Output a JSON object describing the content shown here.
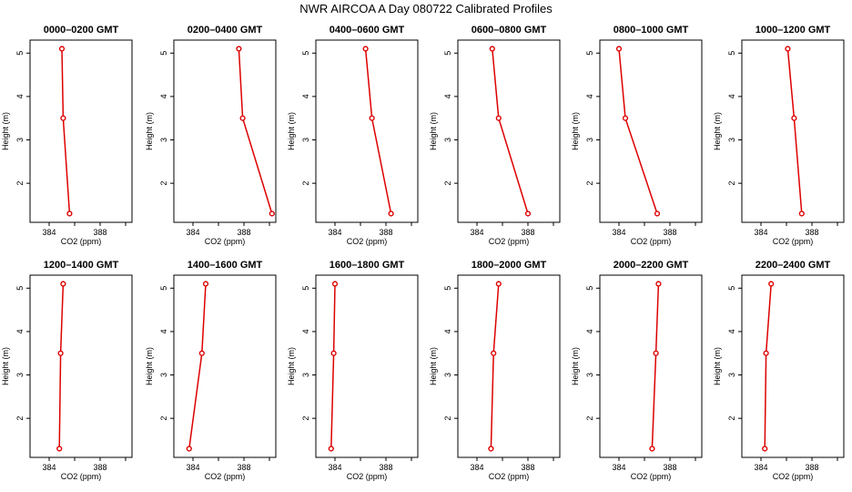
{
  "title": "NWR AIRCOA A  Day 080722  Calibrated Profiles",
  "series_color": "#dd0000",
  "chart_data": [
    {
      "type": "line",
      "title": "0000–0200 GMT",
      "xlabel": "CO2 (ppm)",
      "ylabel": "Height (m)",
      "xlim": [
        382.5,
        390.5
      ],
      "ylim": [
        1.1,
        5.3
      ],
      "xticks": [
        "384",
        "388"
      ],
      "yticks": [
        "2",
        "3",
        "4",
        "5"
      ],
      "grid": false,
      "x": [
        385.0,
        385.1,
        385.6
      ],
      "y": [
        5.1,
        3.5,
        1.3
      ]
    },
    {
      "type": "line",
      "title": "0200–0400 GMT",
      "xlabel": "CO2 (ppm)",
      "ylabel": "Height (m)",
      "xlim": [
        382.5,
        390.5
      ],
      "ylim": [
        1.1,
        5.3
      ],
      "xticks": [
        "384",
        "388"
      ],
      "yticks": [
        "2",
        "3",
        "4",
        "5"
      ],
      "grid": false,
      "x": [
        387.6,
        387.9,
        390.2
      ],
      "y": [
        5.1,
        3.5,
        1.3
      ]
    },
    {
      "type": "line",
      "title": "0400–0600 GMT",
      "xlabel": "CO2 (ppm)",
      "ylabel": "Height (m)",
      "xlim": [
        382.5,
        390.5
      ],
      "ylim": [
        1.1,
        5.3
      ],
      "xticks": [
        "384",
        "388"
      ],
      "yticks": [
        "2",
        "3",
        "4",
        "5"
      ],
      "grid": false,
      "x": [
        386.4,
        386.9,
        388.4
      ],
      "y": [
        5.1,
        3.5,
        1.3
      ]
    },
    {
      "type": "line",
      "title": "0600–0800 GMT",
      "xlabel": "CO2 (ppm)",
      "ylabel": "Height (m)",
      "xlim": [
        382.5,
        390.5
      ],
      "ylim": [
        1.1,
        5.3
      ],
      "xticks": [
        "384",
        "388"
      ],
      "yticks": [
        "2",
        "3",
        "4",
        "5"
      ],
      "grid": false,
      "x": [
        385.2,
        385.7,
        388.0
      ],
      "y": [
        5.1,
        3.5,
        1.3
      ]
    },
    {
      "type": "line",
      "title": "0800–1000 GMT",
      "xlabel": "CO2 (ppm)",
      "ylabel": "Height (m)",
      "xlim": [
        382.5,
        390.5
      ],
      "ylim": [
        1.1,
        5.3
      ],
      "xticks": [
        "384",
        "388"
      ],
      "yticks": [
        "2",
        "3",
        "4",
        "5"
      ],
      "grid": false,
      "x": [
        384.0,
        384.5,
        387.0
      ],
      "y": [
        5.1,
        3.5,
        1.3
      ]
    },
    {
      "type": "line",
      "title": "1000–1200 GMT",
      "xlabel": "CO2 (ppm)",
      "ylabel": "Height (m)",
      "xlim": [
        382.5,
        390.5
      ],
      "ylim": [
        1.1,
        5.3
      ],
      "xticks": [
        "384",
        "388"
      ],
      "yticks": [
        "2",
        "3",
        "4",
        "5"
      ],
      "grid": false,
      "x": [
        386.1,
        386.6,
        387.2
      ],
      "y": [
        5.1,
        3.5,
        1.3
      ]
    },
    {
      "type": "line",
      "title": "1200–1400 GMT",
      "xlabel": "CO2 (ppm)",
      "ylabel": "Height (m)",
      "xlim": [
        382.5,
        390.5
      ],
      "ylim": [
        1.1,
        5.3
      ],
      "xticks": [
        "384",
        "388"
      ],
      "yticks": [
        "2",
        "3",
        "4",
        "5"
      ],
      "grid": false,
      "x": [
        385.1,
        384.9,
        384.8
      ],
      "y": [
        5.1,
        3.5,
        1.3
      ]
    },
    {
      "type": "line",
      "title": "1400–1600 GMT",
      "xlabel": "CO2 (ppm)",
      "ylabel": "Height (m)",
      "xlim": [
        382.5,
        390.5
      ],
      "ylim": [
        1.1,
        5.3
      ],
      "xticks": [
        "384",
        "388"
      ],
      "yticks": [
        "2",
        "3",
        "4",
        "5"
      ],
      "grid": false,
      "x": [
        385.0,
        384.7,
        383.7
      ],
      "y": [
        5.1,
        3.5,
        1.3
      ]
    },
    {
      "type": "line",
      "title": "1600–1800 GMT",
      "xlabel": "CO2 (ppm)",
      "ylabel": "Height (m)",
      "xlim": [
        382.5,
        390.5
      ],
      "ylim": [
        1.1,
        5.3
      ],
      "xticks": [
        "384",
        "388"
      ],
      "yticks": [
        "2",
        "3",
        "4",
        "5"
      ],
      "grid": false,
      "x": [
        384.0,
        383.9,
        383.7
      ],
      "y": [
        5.1,
        3.5,
        1.3
      ]
    },
    {
      "type": "line",
      "title": "1800–2000 GMT",
      "xlabel": "CO2 (ppm)",
      "ylabel": "Height (m)",
      "xlim": [
        382.5,
        390.5
      ],
      "ylim": [
        1.1,
        5.3
      ],
      "xticks": [
        "384",
        "388"
      ],
      "yticks": [
        "2",
        "3",
        "4",
        "5"
      ],
      "grid": false,
      "x": [
        385.7,
        385.3,
        385.1
      ],
      "y": [
        5.1,
        3.5,
        1.3
      ]
    },
    {
      "type": "line",
      "title": "2000–2200 GMT",
      "xlabel": "CO2 (ppm)",
      "ylabel": "Height (m)",
      "xlim": [
        382.5,
        390.5
      ],
      "ylim": [
        1.1,
        5.3
      ],
      "xticks": [
        "384",
        "388"
      ],
      "yticks": [
        "2",
        "3",
        "4",
        "5"
      ],
      "grid": false,
      "x": [
        387.1,
        386.9,
        386.6
      ],
      "y": [
        5.1,
        3.5,
        1.3
      ]
    },
    {
      "type": "line",
      "title": "2200–2400 GMT",
      "xlabel": "CO2 (ppm)",
      "ylabel": "Height (m)",
      "xlim": [
        382.5,
        390.5
      ],
      "ylim": [
        1.1,
        5.3
      ],
      "xticks": [
        "384",
        "388"
      ],
      "yticks": [
        "2",
        "3",
        "4",
        "5"
      ],
      "grid": false,
      "x": [
        384.8,
        384.4,
        384.3
      ],
      "y": [
        5.1,
        3.5,
        1.3
      ]
    }
  ]
}
